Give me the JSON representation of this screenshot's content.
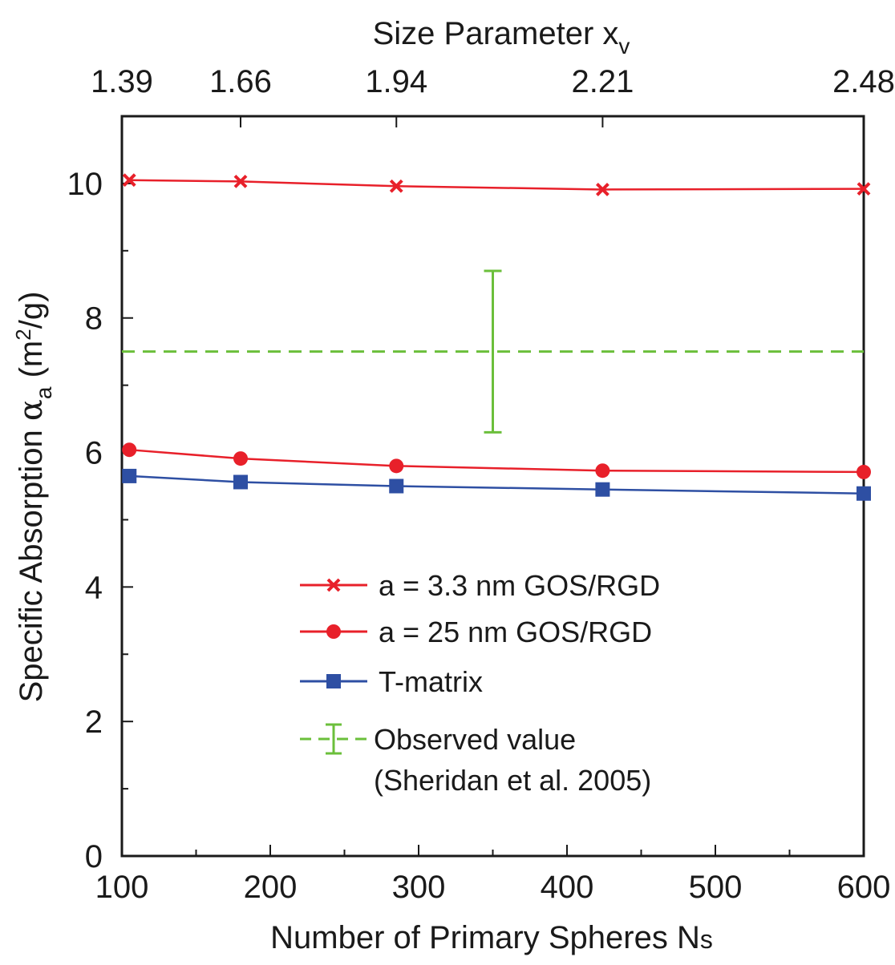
{
  "chart_data": {
    "type": "line",
    "xlabel": "Number of Primary Spheres N",
    "xlabel_sub": "s",
    "ylabel": "Specific Absorption ",
    "ylabel_symbol": "α",
    "ylabel_symbol_sub": "a",
    "ylabel_unit_pre": " (m",
    "ylabel_unit_sup": "2",
    "ylabel_unit_post": "/g)",
    "x2label": "Size Parameter x",
    "x2label_sub": "v",
    "xlim": [
      100,
      600
    ],
    "ylim": [
      0,
      11
    ],
    "xticks": [
      100,
      200,
      300,
      400,
      500,
      600
    ],
    "xtick_labels": [
      "100",
      "200",
      "300",
      "400",
      "500",
      "600"
    ],
    "yticks": [
      0,
      2,
      4,
      6,
      8,
      10
    ],
    "ytick_labels": [
      "0",
      "2",
      "4",
      "6",
      "8",
      "10"
    ],
    "x2ticks": [
      100,
      180,
      285,
      424,
      600
    ],
    "x2tick_labels": [
      "1.39",
      "1.66",
      "1.94",
      "2.21",
      "2.48"
    ],
    "series": [
      {
        "name": "a = 3.3 nm GOS/RGD",
        "color": "#e8202a",
        "marker": "x",
        "x": [
          105,
          180,
          285,
          424,
          600
        ],
        "y": [
          10.05,
          10.03,
          9.96,
          9.91,
          9.92
        ]
      },
      {
        "name": "a = 25 nm GOS/RGD",
        "color": "#e8202a",
        "marker": "circle",
        "x": [
          105,
          180,
          285,
          424,
          600
        ],
        "y": [
          6.04,
          5.91,
          5.8,
          5.73,
          5.71
        ]
      },
      {
        "name": "T-matrix",
        "color": "#2e4fa3",
        "marker": "square",
        "x": [
          105,
          180,
          285,
          424,
          600
        ],
        "y": [
          5.65,
          5.56,
          5.5,
          5.45,
          5.39
        ]
      }
    ],
    "reference": {
      "name": "Observed value",
      "name_line2": "(Sheridan et al. 2005)",
      "color": "#6bbf3b",
      "y": 7.5,
      "err_x": 350,
      "err_low": 6.3,
      "err_high": 8.7
    },
    "legend_position": "lower-center"
  }
}
